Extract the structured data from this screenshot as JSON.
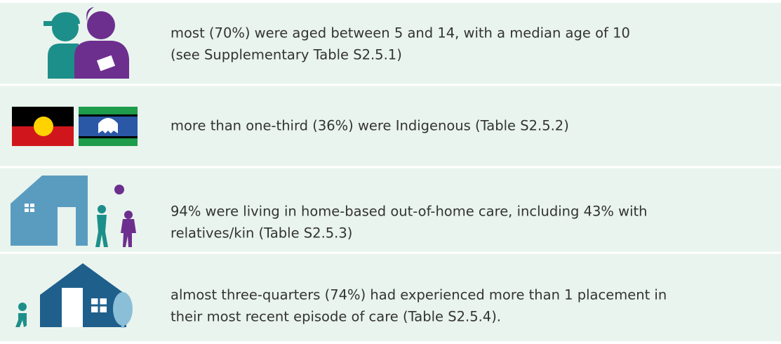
{
  "items": [
    {
      "lines": [
        "most (70%) were aged between 5 and 14, with a median age of 10",
        "(see Supplementary Table S2.5.1)"
      ]
    },
    {
      "lines": [
        "more than one-third (36%) were Indigenous (Table S2.5.2)"
      ]
    },
    {
      "lines": [
        "94% were living in home-based out-of-home care, including 43% with",
        "relatives/kin (Table S2.5.3)"
      ]
    },
    {
      "lines": [
        "almost three-quarters (74%) had experienced more than 1 placement in",
        "their most recent episode of care (Table S2.5.4)."
      ]
    }
  ]
}
